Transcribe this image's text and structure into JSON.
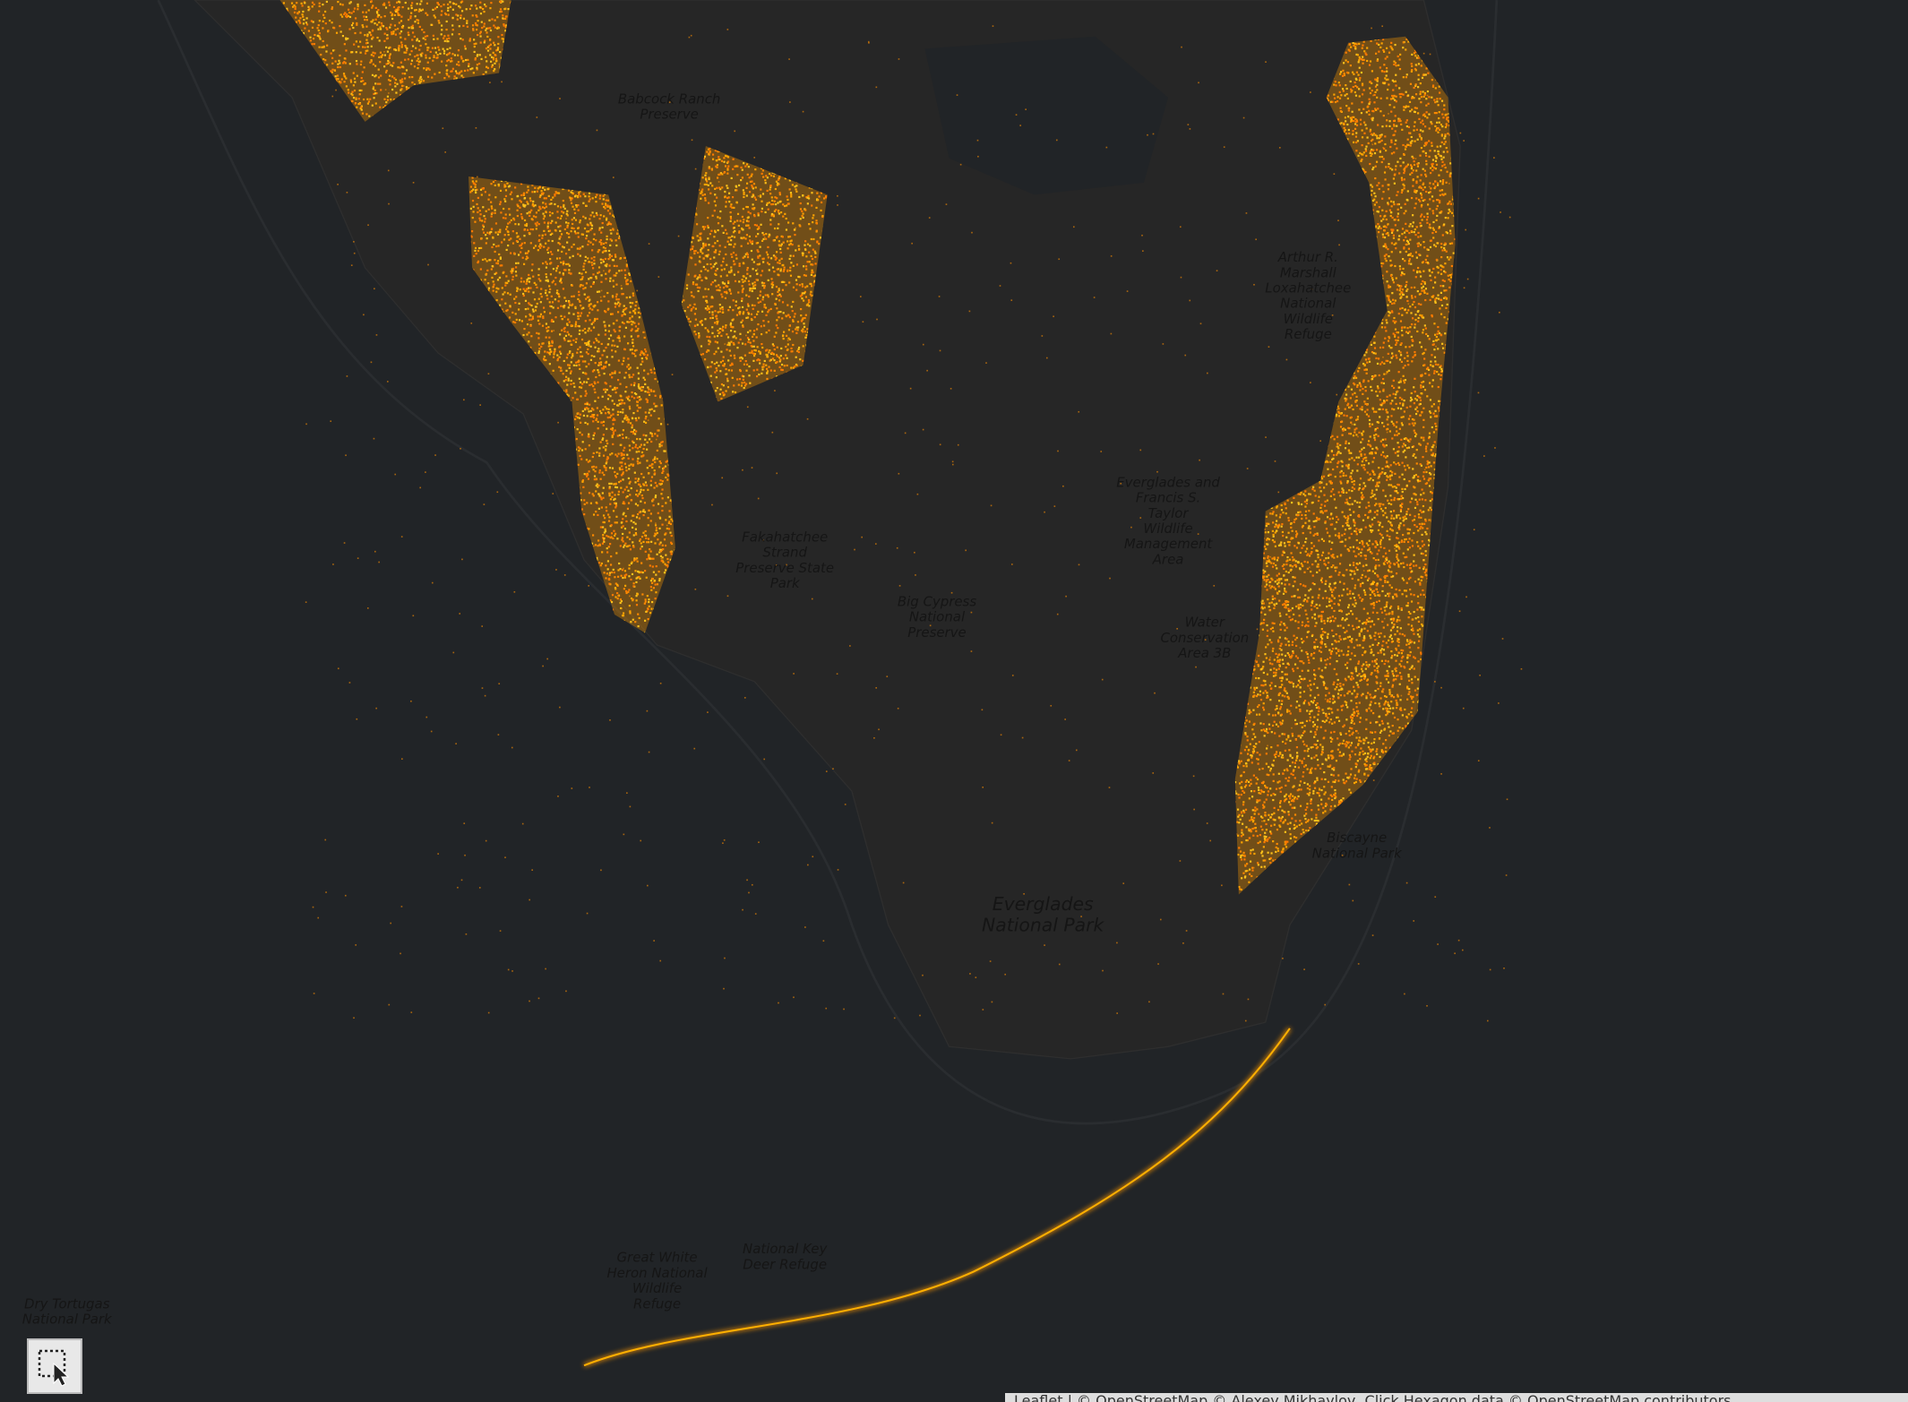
{
  "labels": [
    "Everglades National Park",
    "Big Cypress National Preserve",
    "Everglades and Francis S. Taylor Wildlife Management Area",
    "Water Conservation Area 3B",
    "Arthur R. Marshall Loxahatchee National Wildlife Refuge",
    "Fakahatchee Strand Preserve State Park",
    "Babcock Ranch Preserve",
    "Dry Tortugas National Park",
    "Great White Heron National Wildlife Refuge",
    "National Key Deer Refuge",
    "Biscayne National Park"
  ],
  "attribution": "Leaflet | © OpenStreetMap © Alexey Mikhaylov, Click Hexagon data © OpenStreetMap contributors"
}
